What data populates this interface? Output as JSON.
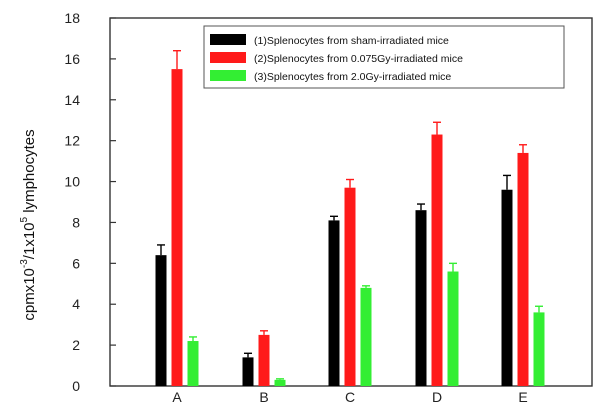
{
  "chart_data": {
    "type": "bar",
    "categories": [
      "A",
      "B",
      "C",
      "D",
      "E"
    ],
    "series": [
      {
        "name": "(1)Splenocytes from sham-irradiated mice",
        "color": "#000000",
        "values": [
          6.4,
          1.4,
          8.1,
          8.6,
          9.6
        ],
        "errors": [
          0.5,
          0.2,
          0.2,
          0.3,
          0.7
        ]
      },
      {
        "name": "(2)Splenocytes from 0.075Gy-irradiated mice",
        "color": "#ff1a1a",
        "values": [
          15.5,
          2.5,
          9.7,
          12.3,
          11.4
        ],
        "errors": [
          0.9,
          0.2,
          0.4,
          0.6,
          0.4
        ]
      },
      {
        "name": "(3)Splenocytes from 2.0Gy-irradiated mice",
        "color": "#33ee33",
        "values": [
          2.2,
          0.3,
          4.8,
          5.6,
          3.6
        ],
        "errors": [
          0.2,
          0.05,
          0.1,
          0.4,
          0.3
        ]
      }
    ],
    "ylim": [
      0,
      18
    ],
    "yticks": [
      "0",
      "2",
      "4",
      "6",
      "8",
      "10",
      "12",
      "14",
      "16",
      "18"
    ],
    "ylabel": {
      "base": "cpmx10",
      "exp1": "-3",
      "mid": "/1x10",
      "exp2": "5",
      "tail": " lymphocytes"
    },
    "xlabel": "",
    "title": "",
    "legend_position": "top-right",
    "grid": false
  }
}
